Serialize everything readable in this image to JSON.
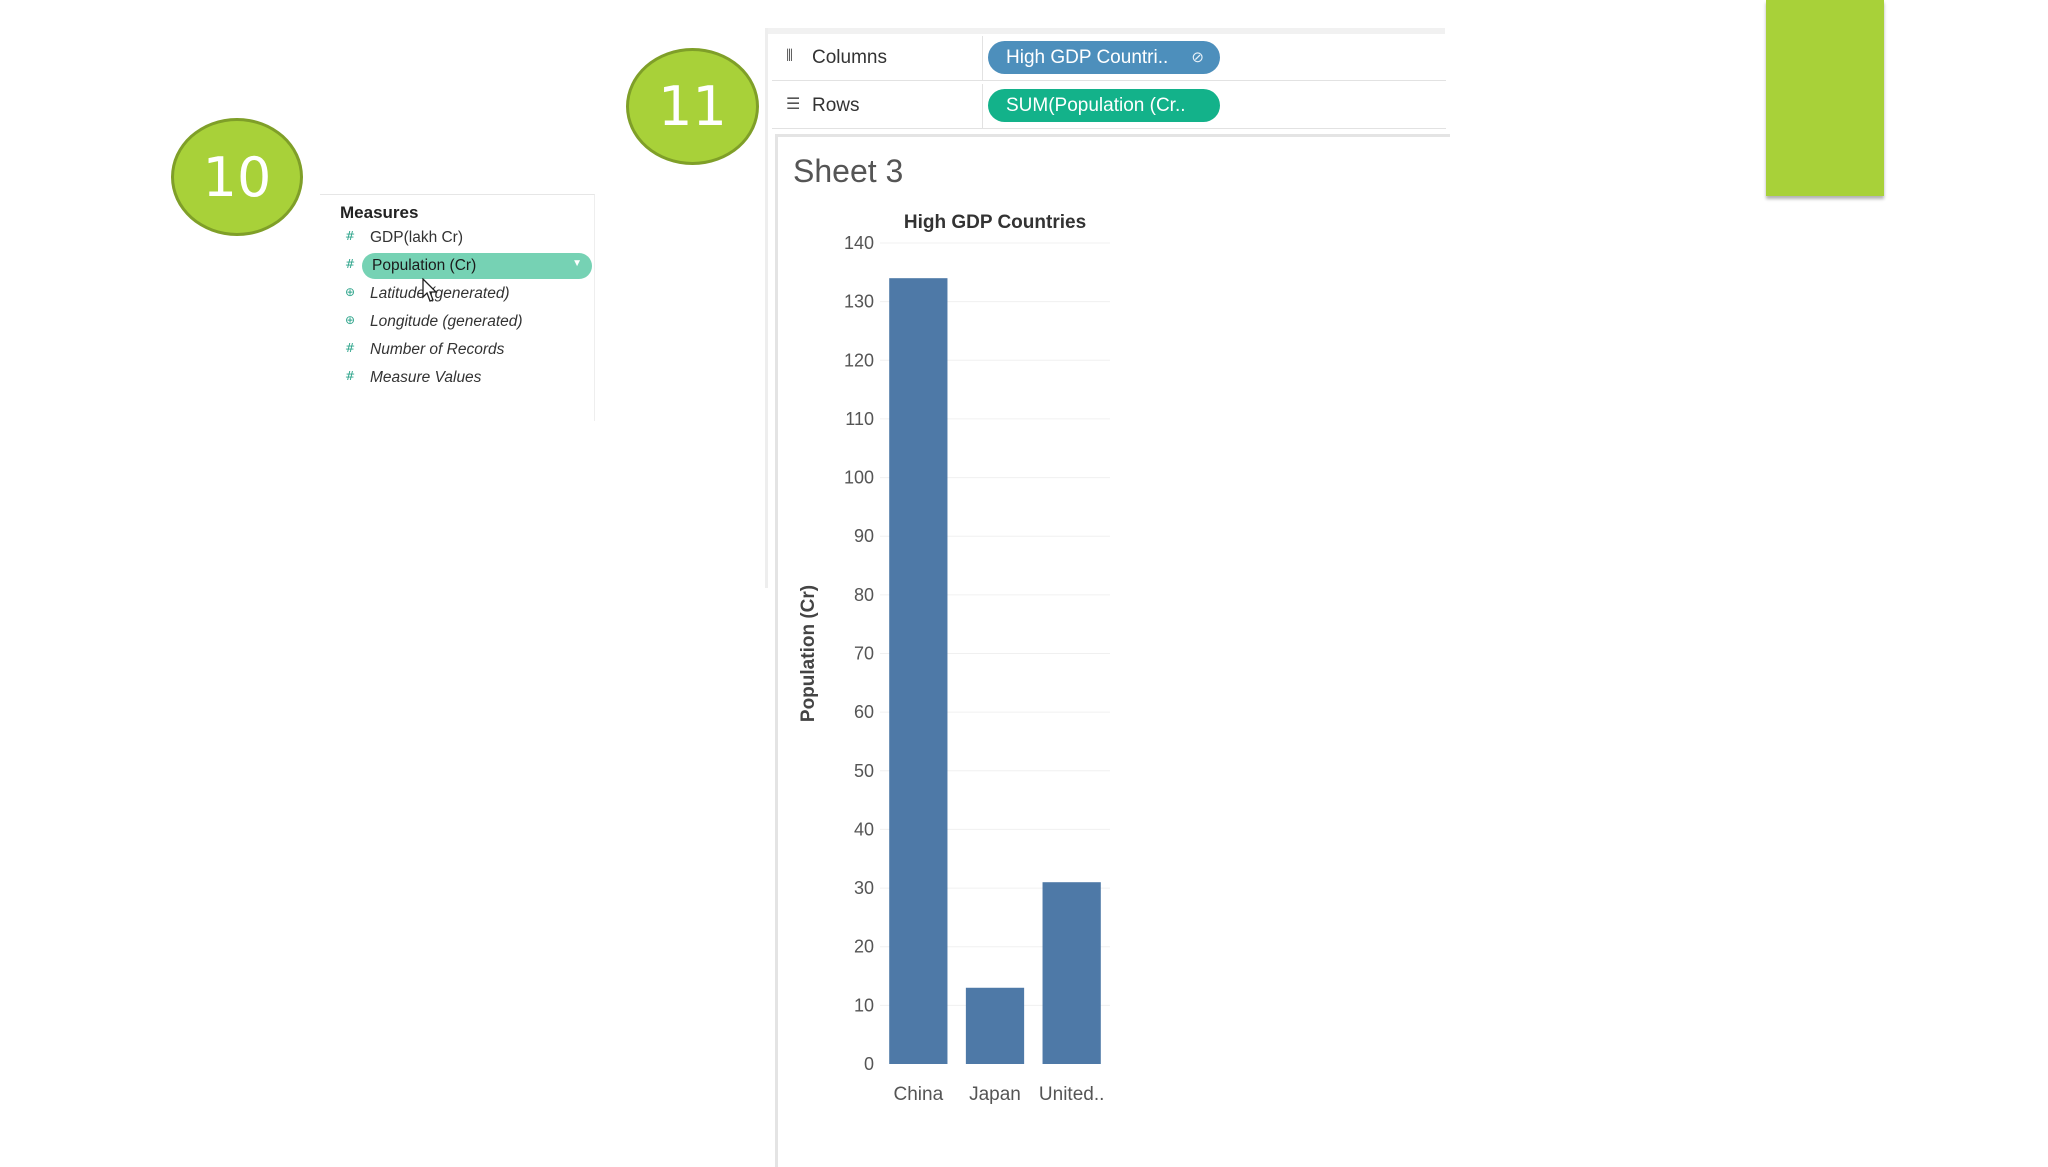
{
  "step_markers": [
    "10",
    "11"
  ],
  "accent_color": "#a8d139",
  "measures": {
    "title": "Measures",
    "items": [
      {
        "icon": "hash-icon",
        "label": "GDP(lakh Cr)",
        "italic": false,
        "selected": false
      },
      {
        "icon": "hash-icon",
        "label": "Population (Cr)",
        "italic": false,
        "selected": true
      },
      {
        "icon": "globe-icon",
        "label": "Latitude (generated)",
        "italic": true,
        "selected": false
      },
      {
        "icon": "globe-icon",
        "label": "Longitude (generated)",
        "italic": true,
        "selected": false
      },
      {
        "icon": "hash-icon",
        "label": "Number of Records",
        "italic": true,
        "selected": false
      },
      {
        "icon": "hash-icon",
        "label": "Measure Values",
        "italic": true,
        "selected": false
      }
    ]
  },
  "shelves": {
    "columns": {
      "label": "Columns",
      "pill": "High GDP Countri..",
      "pill_color": "#4d8fbc"
    },
    "rows": {
      "label": "Rows",
      "pill": "SUM(Population (Cr..",
      "pill_color": "#13b28a"
    }
  },
  "sheet": {
    "title": "Sheet 3"
  },
  "chart_data": {
    "type": "bar",
    "title": "High GDP Countries",
    "ylabel": "Population (Cr)",
    "xlabel": "",
    "categories": [
      "China",
      "Japan",
      "United.."
    ],
    "values": [
      134,
      13,
      31
    ],
    "ylim": [
      0,
      140
    ],
    "yticks": [
      0,
      10,
      20,
      30,
      40,
      50,
      60,
      70,
      80,
      90,
      100,
      110,
      120,
      130,
      140
    ],
    "bar_color": "#4e79a7",
    "grid": true
  }
}
